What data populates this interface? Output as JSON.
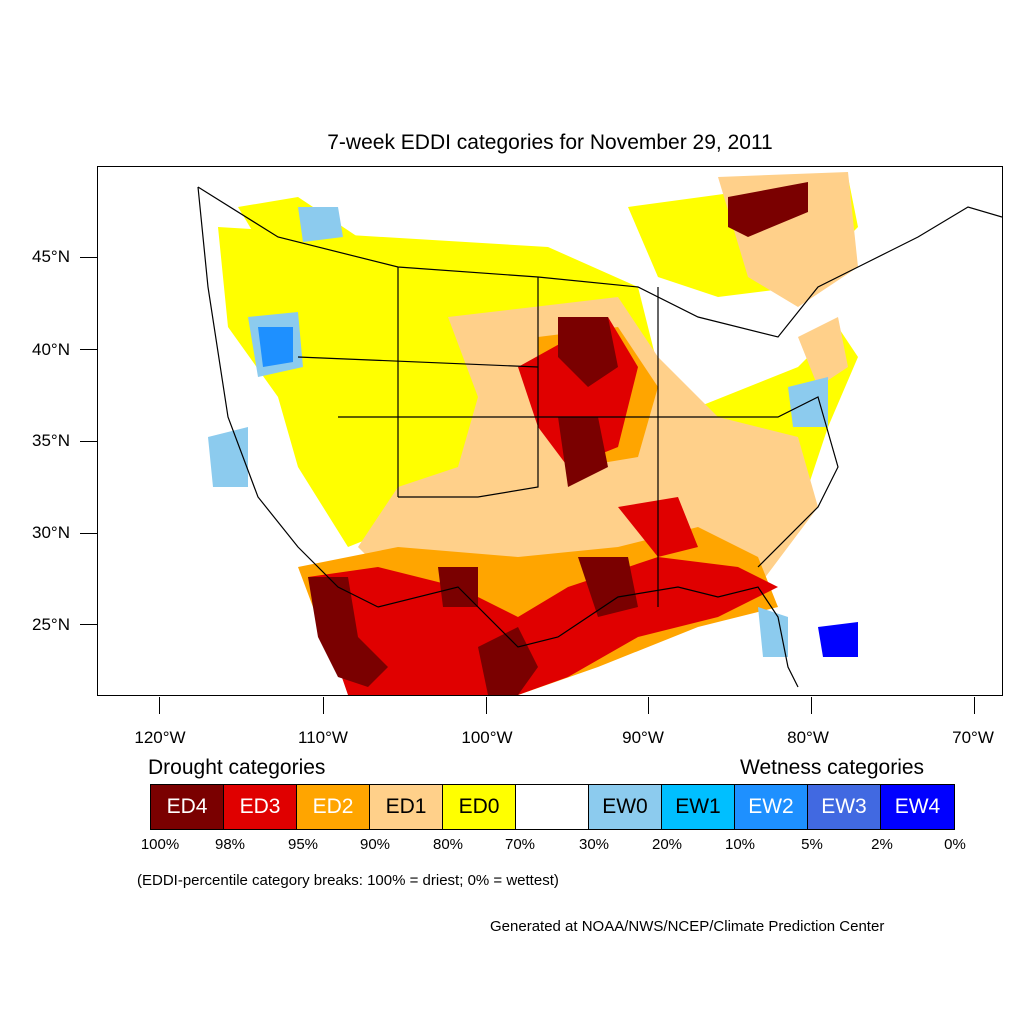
{
  "title": "7-week EDDI categories for November 29, 2011",
  "map": {
    "type": "choropleth-map",
    "region": "Contiguous United States",
    "lat_labels": [
      "45°N",
      "40°N",
      "35°N",
      "30°N",
      "25°N"
    ],
    "lon_labels": [
      "120°W",
      "110°W",
      "100°W",
      "90°W",
      "80°W",
      "70°W"
    ]
  },
  "legend": {
    "drought_heading": "Drought categories",
    "wetness_heading": "Wetness categories",
    "categories": [
      {
        "label": "ED4",
        "color": "#7a0000",
        "text_color": "#ffffff"
      },
      {
        "label": "ED3",
        "color": "#e00000",
        "text_color": "#ffffff"
      },
      {
        "label": "ED2",
        "color": "#ffa500",
        "text_color": "#ffffff"
      },
      {
        "label": "ED1",
        "color": "#ffd08a",
        "text_color": "#000000"
      },
      {
        "label": "ED0",
        "color": "#ffff00",
        "text_color": "#000000"
      },
      {
        "label": "",
        "color": "#ffffff",
        "text_color": "#000000"
      },
      {
        "label": "EW0",
        "color": "#8ccbee",
        "text_color": "#000000"
      },
      {
        "label": "EW1",
        "color": "#00bfff",
        "text_color": "#000000"
      },
      {
        "label": "EW2",
        "color": "#1e90ff",
        "text_color": "#ffffff"
      },
      {
        "label": "EW3",
        "color": "#4169e1",
        "text_color": "#ffffff"
      },
      {
        "label": "EW4",
        "color": "#0000ff",
        "text_color": "#ffffff"
      }
    ],
    "breaks": [
      "100%",
      "98%",
      "95%",
      "90%",
      "80%",
      "70%",
      "30%",
      "20%",
      "10%",
      "5%",
      "2%",
      "0%"
    ]
  },
  "note": "(EDDI-percentile category breaks: 100% = driest; 0% = wettest)",
  "credit": "Generated at NOAA/NWS/NCEP/Climate Prediction Center"
}
